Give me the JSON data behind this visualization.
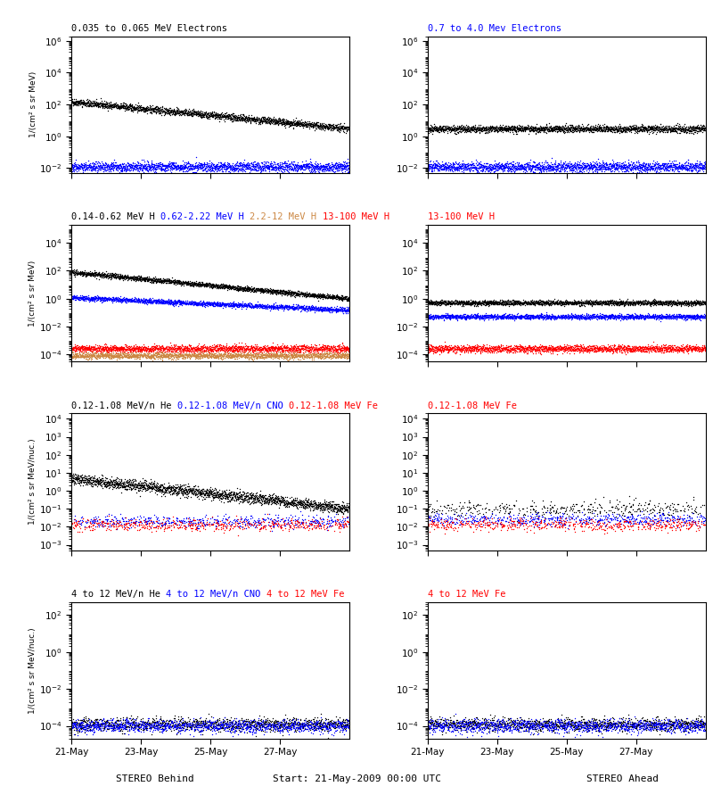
{
  "titles_row1": [
    {
      "text": "0.035 to 0.065 MeV Electrons",
      "color": "black"
    },
    {
      "text": "0.7 to 4.0 Mev Electrons",
      "color": "blue"
    }
  ],
  "titles_row2_left": [
    {
      "text": "0.14-0.62 MeV H",
      "color": "black"
    },
    {
      "text": "0.62-2.22 MeV H",
      "color": "blue"
    },
    {
      "text": "2.2-12 MeV H",
      "color": "#cc8844"
    },
    {
      "text": "13-100 MeV H",
      "color": "red"
    }
  ],
  "titles_row2_right": [
    {
      "text": "13-100 MeV H",
      "color": "red"
    }
  ],
  "titles_row3_left": [
    {
      "text": "0.12-1.08 MeV/n He",
      "color": "black"
    },
    {
      "text": "0.12-1.08 MeV/n CNO",
      "color": "blue"
    },
    {
      "text": "0.12-1.08 MeV Fe",
      "color": "red"
    }
  ],
  "titles_row3_right": [
    {
      "text": "0.12-1.08 MeV Fe",
      "color": "red"
    }
  ],
  "titles_row4_left": [
    {
      "text": "4 to 12 MeV/n He",
      "color": "black"
    },
    {
      "text": "4 to 12 MeV/n CNO",
      "color": "blue"
    },
    {
      "text": "4 to 12 MeV Fe",
      "color": "red"
    }
  ],
  "titles_row4_right": [
    {
      "text": "4 to 12 MeV Fe",
      "color": "red"
    }
  ],
  "xlabel_left": "STEREO Behind",
  "xlabel_right": "STEREO Ahead",
  "xlabel_center": "Start: 21-May-2009 00:00 UTC",
  "ylabel_electrons": "1/(cm² s sr MeV)",
  "ylabel_H": "1/(cm² s sr MeV)",
  "ylabel_heavy": "1/(cm² s sr MeV/nuc.)",
  "xticklabels": [
    "21-May",
    "23-May",
    "25-May",
    "27-May"
  ],
  "seed": 42
}
